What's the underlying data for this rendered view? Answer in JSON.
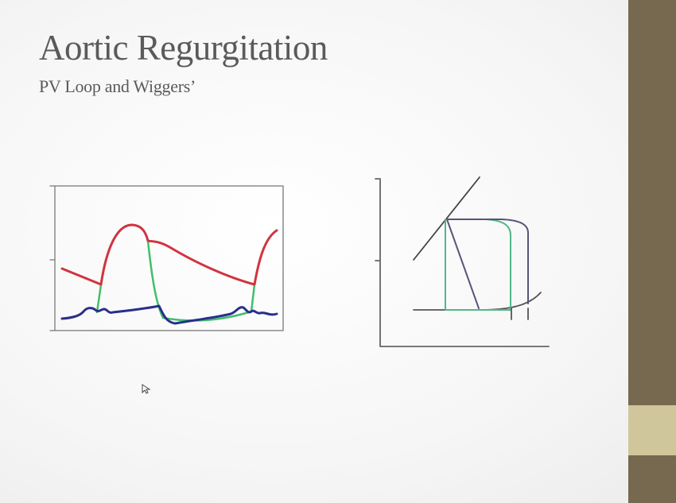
{
  "slide": {
    "title": "Aortic Regurgitation",
    "subtitle": "PV Loop and Wiggers’"
  },
  "colors": {
    "aortic_pressure": "#d1343f",
    "ventricular_pressure_normal": "#3fbf6a",
    "atrial_pressure": "#2b2f8a",
    "pv_loop_ar": "#55557a",
    "pv_loop_normal": "#4fb88a",
    "sidebar": "#76694f",
    "sidebar_accent": "#cfc79b"
  },
  "icons": {
    "cursor": "mouse-pointer-icon"
  }
}
